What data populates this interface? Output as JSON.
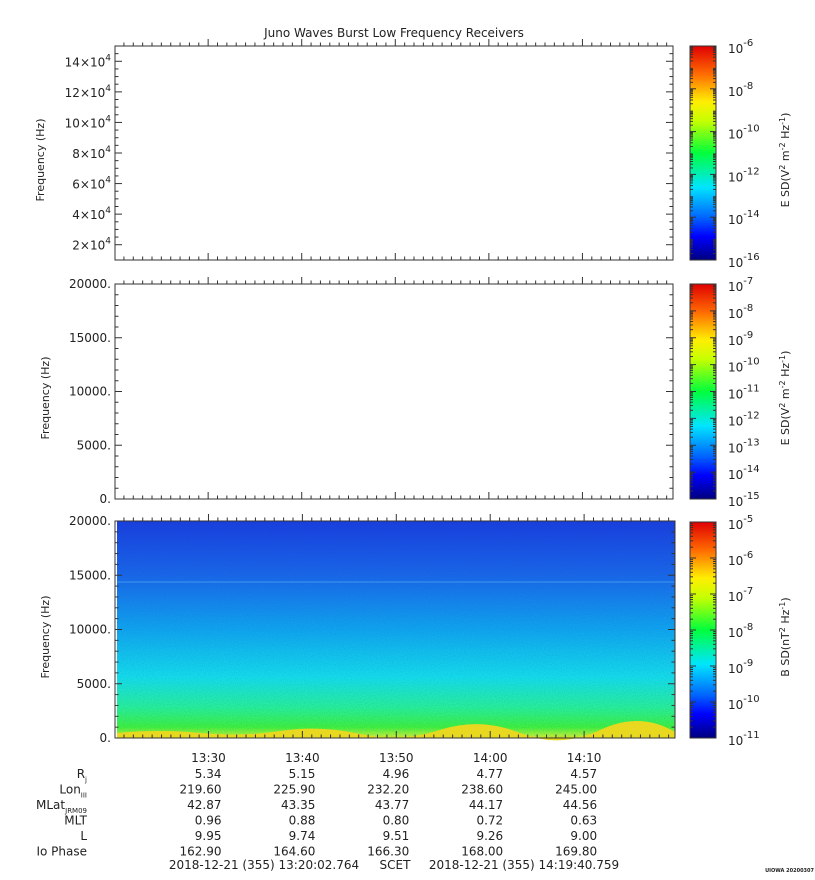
{
  "title": "Juno Waves Burst Low Frequency Receivers",
  "chart_data": [
    {
      "type": "heatmap",
      "panel": "top",
      "ylabel": "Frequency (Hz)",
      "yticks": [
        {
          "base": "2×10",
          "exp": "4"
        },
        {
          "base": "4×10",
          "exp": "4"
        },
        {
          "base": "6×10",
          "exp": "4"
        },
        {
          "base": "8×10",
          "exp": "4"
        },
        {
          "base": "10×10",
          "exp": "4"
        },
        {
          "base": "12×10",
          "exp": "4"
        },
        {
          "base": "14×10",
          "exp": "4"
        }
      ],
      "ylim": [
        10000,
        150000
      ],
      "colorbar": {
        "label": "E SD (V² m⁻² Hz⁻¹)",
        "label_parts": [
          "E SD(V",
          "2",
          " m",
          "-2",
          " Hz",
          "-1",
          ")"
        ],
        "ticks": [
          "-6",
          "-8",
          "-10",
          "-12",
          "-14",
          "-16"
        ],
        "range_exp": [
          -16,
          -6
        ],
        "scale": "log"
      },
      "data": "empty"
    },
    {
      "type": "heatmap",
      "panel": "middle",
      "ylabel": "Frequency (Hz)",
      "yticks": [
        "0.",
        "5000.",
        "10000.",
        "15000.",
        "20000."
      ],
      "ylim": [
        0,
        20000
      ],
      "colorbar": {
        "label": "E SD (V² m⁻² Hz⁻¹)",
        "label_parts": [
          "E SD(V",
          "2",
          " m",
          "-2",
          " Hz",
          "-1",
          ")"
        ],
        "ticks": [
          "-7",
          "-8",
          "-9",
          "-10",
          "-11",
          "-12",
          "-13",
          "-14",
          "-15"
        ],
        "range_exp": [
          -15,
          -7
        ],
        "scale": "log"
      },
      "data": "empty"
    },
    {
      "type": "heatmap",
      "panel": "bottom",
      "ylabel": "Frequency (Hz)",
      "yticks": [
        "0.",
        "5000.",
        "10000.",
        "15000.",
        "20000."
      ],
      "ylim": [
        0,
        20000
      ],
      "colorbar": {
        "label": "B SD (nT² Hz⁻¹)",
        "label_parts": [
          "B SD(nT",
          "2",
          " Hz",
          "-1",
          ")"
        ],
        "ticks": [
          "-5",
          "-6",
          "-7",
          "-8",
          "-9",
          "-10",
          "-11"
        ],
        "range_exp": [
          -11,
          -5
        ],
        "scale": "log"
      },
      "data": "spectrogram: intensity ~1e-10 at top (blue), rising toward ~1e-8 near 0 Hz (green/yellow band)"
    }
  ],
  "x_axis": {
    "range": [
      "13:20:02.764",
      "14:19:40.759"
    ],
    "ticks": [
      "13:30",
      "13:40",
      "13:50",
      "14:00",
      "14:10"
    ],
    "tick_minutes": [
      30,
      40,
      50,
      60,
      70
    ],
    "start_minutes": 20.046,
    "end_minutes": 79.679
  },
  "ephemeris": {
    "rows": [
      {
        "label": "R",
        "sub": "j",
        "values": [
          "5.34",
          "5.15",
          "4.96",
          "4.77",
          "4.57"
        ]
      },
      {
        "label": "Lon",
        "sub": "III",
        "values": [
          "219.60",
          "225.90",
          "232.20",
          "238.60",
          "245.00"
        ]
      },
      {
        "label": "MLat",
        "sub": "JRM09",
        "values": [
          "42.87",
          "43.35",
          "43.77",
          "44.17",
          "44.56"
        ]
      },
      {
        "label": "MLT",
        "sub": "",
        "values": [
          "0.96",
          "0.88",
          "0.80",
          "0.72",
          "0.63"
        ]
      },
      {
        "label": "L",
        "sub": "",
        "values": [
          "9.95",
          "9.74",
          "9.51",
          "9.26",
          "9.00"
        ]
      },
      {
        "label": "Io Phase",
        "sub": "",
        "values": [
          "162.90",
          "164.60",
          "166.30",
          "168.00",
          "169.80"
        ]
      }
    ]
  },
  "footer": {
    "start": "2018-12-21 (355) 13:20:02.764",
    "scet": "SCET",
    "end": "2018-12-21 (355) 14:19:40.759",
    "credit": "UIOWA 20200307"
  }
}
